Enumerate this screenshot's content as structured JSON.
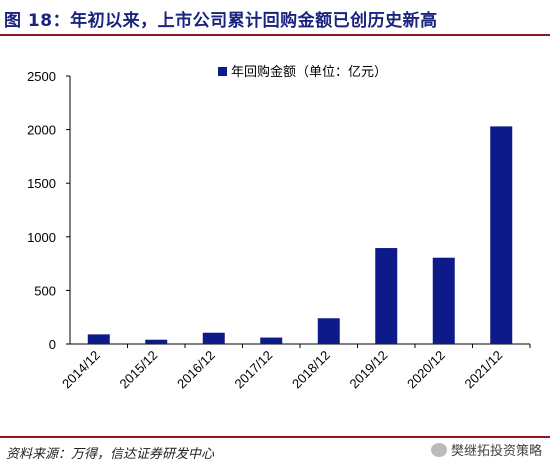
{
  "figure": {
    "title": "图 18：年初以来，上市公司累计回购金额已创历史新高",
    "source": "资料来源：万得，信达证券研发中心",
    "watermark": "樊继拓投资策略",
    "watermark_icon": "wechat-icon"
  },
  "colors": {
    "bar": "#0d1a8a",
    "accent_line": "#8b1a1a",
    "title": "#1a237e"
  },
  "chart_data": {
    "type": "bar",
    "categories": [
      "2014/12",
      "2015/12",
      "2016/12",
      "2017/12",
      "2018/12",
      "2019/12",
      "2020/12",
      "2021/12"
    ],
    "series": [
      {
        "name": "年回购金额（单位：亿元）",
        "values": [
          90,
          40,
          105,
          60,
          240,
          895,
          805,
          2030
        ]
      }
    ],
    "ylim": [
      0,
      2500
    ],
    "yticks": [
      0,
      500,
      1000,
      1500,
      2000,
      2500
    ],
    "grid": false,
    "legend": "top-right",
    "xlabel": "",
    "ylabel": ""
  }
}
